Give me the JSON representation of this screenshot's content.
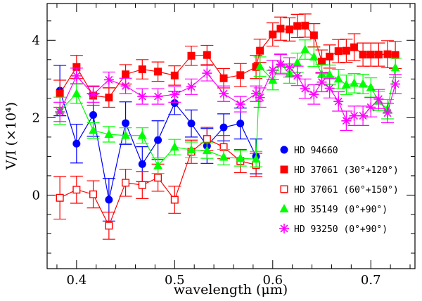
{
  "chart_data": {
    "type": "scatter",
    "xlabel": "wavelength (μm)",
    "ylabel": "V/I (×10⁴)",
    "xlim": [
      0.37,
      0.745
    ],
    "ylim": [
      -1.9,
      4.95
    ],
    "x_ticks": [
      0.4,
      0.5,
      0.6,
      0.7
    ],
    "x_tick_labels": [
      "0.4",
      "0.5",
      "0.6",
      "0.7"
    ],
    "y_ticks": [
      0,
      2,
      4
    ],
    "y_tick_labels": [
      "0",
      "2",
      "4"
    ],
    "legend_position": "lower-right",
    "series": [
      {
        "name": "HD 94660",
        "color": "#0000ff",
        "marker": "circle",
        "filled": true,
        "x": [
          0.383,
          0.4,
          0.417,
          0.433,
          0.45,
          0.467,
          0.483,
          0.5,
          0.517,
          0.533,
          0.55,
          0.567,
          0.583
        ],
        "y": [
          2.7,
          1.33,
          2.07,
          -0.12,
          1.86,
          0.8,
          1.42,
          2.38,
          1.85,
          1.27,
          1.75,
          1.85,
          1.0
        ],
        "err": [
          0.65,
          0.5,
          0.55,
          0.55,
          0.55,
          0.45,
          0.5,
          0.3,
          0.35,
          0.45,
          0.35,
          0.4,
          0.45
        ]
      },
      {
        "name": "HD 37061 (30°+120°)",
        "color": "#ff0000",
        "marker": "square",
        "filled": true,
        "x": [
          0.383,
          0.4,
          0.417,
          0.433,
          0.45,
          0.467,
          0.483,
          0.5,
          0.517,
          0.533,
          0.55,
          0.567,
          0.583,
          0.587,
          0.6,
          0.608,
          0.617,
          0.625,
          0.633,
          0.642,
          0.65,
          0.658,
          0.667,
          0.675,
          0.683,
          0.692,
          0.7,
          0.708,
          0.717,
          0.725
        ],
        "y": [
          2.62,
          3.31,
          2.57,
          2.52,
          3.12,
          3.25,
          3.19,
          3.09,
          3.6,
          3.62,
          3.02,
          3.1,
          3.31,
          3.73,
          4.15,
          4.3,
          4.28,
          4.37,
          4.38,
          4.13,
          3.45,
          3.58,
          3.72,
          3.73,
          3.82,
          3.63,
          3.63,
          3.63,
          3.64,
          3.62
        ],
        "err": [
          0.35,
          0.3,
          0.25,
          0.25,
          0.25,
          0.25,
          0.25,
          0.25,
          0.25,
          0.25,
          0.25,
          0.3,
          0.3,
          0.3,
          0.3,
          0.3,
          0.3,
          0.3,
          0.3,
          0.3,
          0.3,
          0.3,
          0.3,
          0.3,
          0.35,
          0.3,
          0.3,
          0.3,
          0.35,
          0.35
        ]
      },
      {
        "name": "HD 37061 (60°+150°)",
        "color": "#ff0000",
        "marker": "square",
        "filled": false,
        "x": [
          0.383,
          0.4,
          0.417,
          0.433,
          0.45,
          0.467,
          0.483,
          0.5,
          0.517,
          0.533,
          0.55,
          0.567,
          0.583
        ],
        "y": [
          -0.07,
          0.14,
          0.02,
          -0.79,
          0.32,
          0.26,
          0.45,
          -0.12,
          1.12,
          1.45,
          1.24,
          0.88,
          0.78
        ],
        "err": [
          0.55,
          0.35,
          0.35,
          0.35,
          0.35,
          0.35,
          0.35,
          0.35,
          0.3,
          0.3,
          0.3,
          0.3,
          0.3
        ]
      },
      {
        "name": "HD 35149 (0°+90°)",
        "color": "#00ff00",
        "marker": "triangle",
        "filled": true,
        "x": [
          0.383,
          0.4,
          0.417,
          0.433,
          0.45,
          0.467,
          0.483,
          0.5,
          0.517,
          0.533,
          0.55,
          0.567,
          0.583,
          0.587,
          0.6,
          0.608,
          0.617,
          0.625,
          0.633,
          0.642,
          0.65,
          0.658,
          0.667,
          0.675,
          0.683,
          0.692,
          0.7,
          0.708,
          0.717,
          0.725
        ],
        "y": [
          2.18,
          2.62,
          1.67,
          1.57,
          1.54,
          1.54,
          0.76,
          1.24,
          1.17,
          1.15,
          0.98,
          0.95,
          0.93,
          3.32,
          2.97,
          3.4,
          3.14,
          3.42,
          3.76,
          3.57,
          3.12,
          3.11,
          3.0,
          2.85,
          2.89,
          2.87,
          2.78,
          2.43,
          2.22,
          3.29
        ],
        "err": [
          0.35,
          0.25,
          0.2,
          0.2,
          0.2,
          0.2,
          0.2,
          0.2,
          0.2,
          0.2,
          0.2,
          0.2,
          0.2,
          0.25,
          0.25,
          0.25,
          0.25,
          0.25,
          0.25,
          0.25,
          0.25,
          0.25,
          0.25,
          0.25,
          0.25,
          0.25,
          0.25,
          0.25,
          0.25,
          0.25
        ]
      },
      {
        "name": "HD 93250 (0°+90°)",
        "color": "#ff00ff",
        "marker": "asterisk",
        "filled": true,
        "x": [
          0.383,
          0.4,
          0.417,
          0.433,
          0.45,
          0.467,
          0.483,
          0.5,
          0.517,
          0.533,
          0.55,
          0.567,
          0.583,
          0.587,
          0.6,
          0.608,
          0.617,
          0.625,
          0.633,
          0.642,
          0.65,
          0.658,
          0.667,
          0.675,
          0.683,
          0.692,
          0.7,
          0.708,
          0.717,
          0.725
        ],
        "y": [
          2.15,
          3.08,
          2.6,
          2.98,
          2.82,
          2.55,
          2.55,
          2.6,
          2.8,
          3.15,
          2.62,
          2.35,
          2.62,
          2.52,
          3.23,
          3.38,
          3.3,
          3.08,
          2.75,
          2.6,
          2.92,
          2.76,
          2.42,
          1.92,
          2.05,
          2.05,
          2.27,
          2.48,
          2.12,
          2.87
        ],
        "err": [
          0.25,
          0.2,
          0.2,
          0.2,
          0.2,
          0.2,
          0.2,
          0.2,
          0.2,
          0.2,
          0.2,
          0.2,
          0.2,
          0.25,
          0.25,
          0.25,
          0.25,
          0.25,
          0.25,
          0.25,
          0.25,
          0.25,
          0.25,
          0.25,
          0.25,
          0.25,
          0.25,
          0.25,
          0.25,
          0.25
        ]
      }
    ]
  }
}
